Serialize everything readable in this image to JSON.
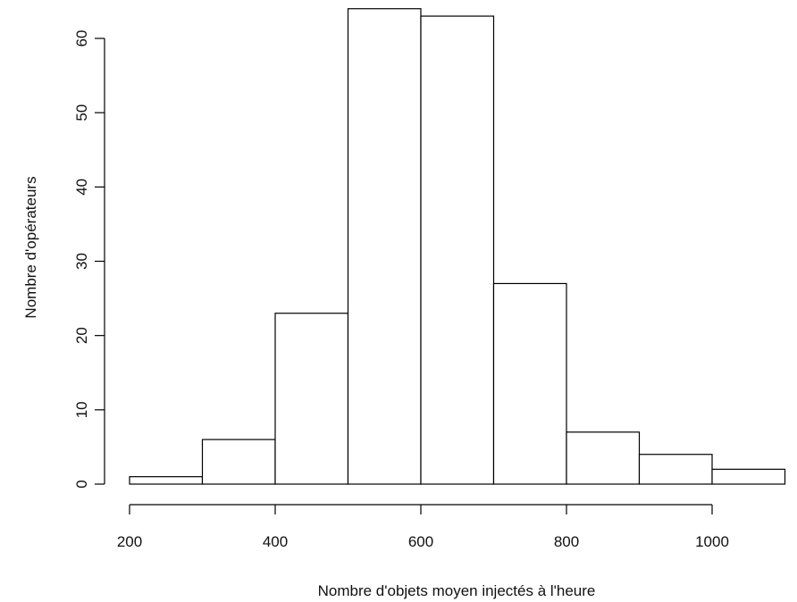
{
  "chart_data": {
    "type": "bar",
    "subtype": "histogram",
    "title": "",
    "xlabel": "Nombre d'objets moyen injectés à l'heure",
    "ylabel": "Nombre d'opérateurs",
    "bins": [
      {
        "start": 200,
        "end": 300,
        "count": 1
      },
      {
        "start": 300,
        "end": 400,
        "count": 6
      },
      {
        "start": 400,
        "end": 500,
        "count": 23
      },
      {
        "start": 500,
        "end": 600,
        "count": 64
      },
      {
        "start": 600,
        "end": 700,
        "count": 63
      },
      {
        "start": 700,
        "end": 800,
        "count": 27
      },
      {
        "start": 800,
        "end": 900,
        "count": 7
      },
      {
        "start": 900,
        "end": 1000,
        "count": 4
      },
      {
        "start": 1000,
        "end": 1100,
        "count": 2
      }
    ],
    "x_ticks": [
      200,
      400,
      600,
      800,
      1000
    ],
    "y_ticks": [
      0,
      10,
      20,
      30,
      40,
      50,
      60
    ],
    "xlim": [
      200,
      1000
    ],
    "ylim": [
      0,
      60
    ],
    "grid": false,
    "colors": {
      "bar_fill": "#ffffff",
      "bar_stroke": "#000000"
    }
  }
}
